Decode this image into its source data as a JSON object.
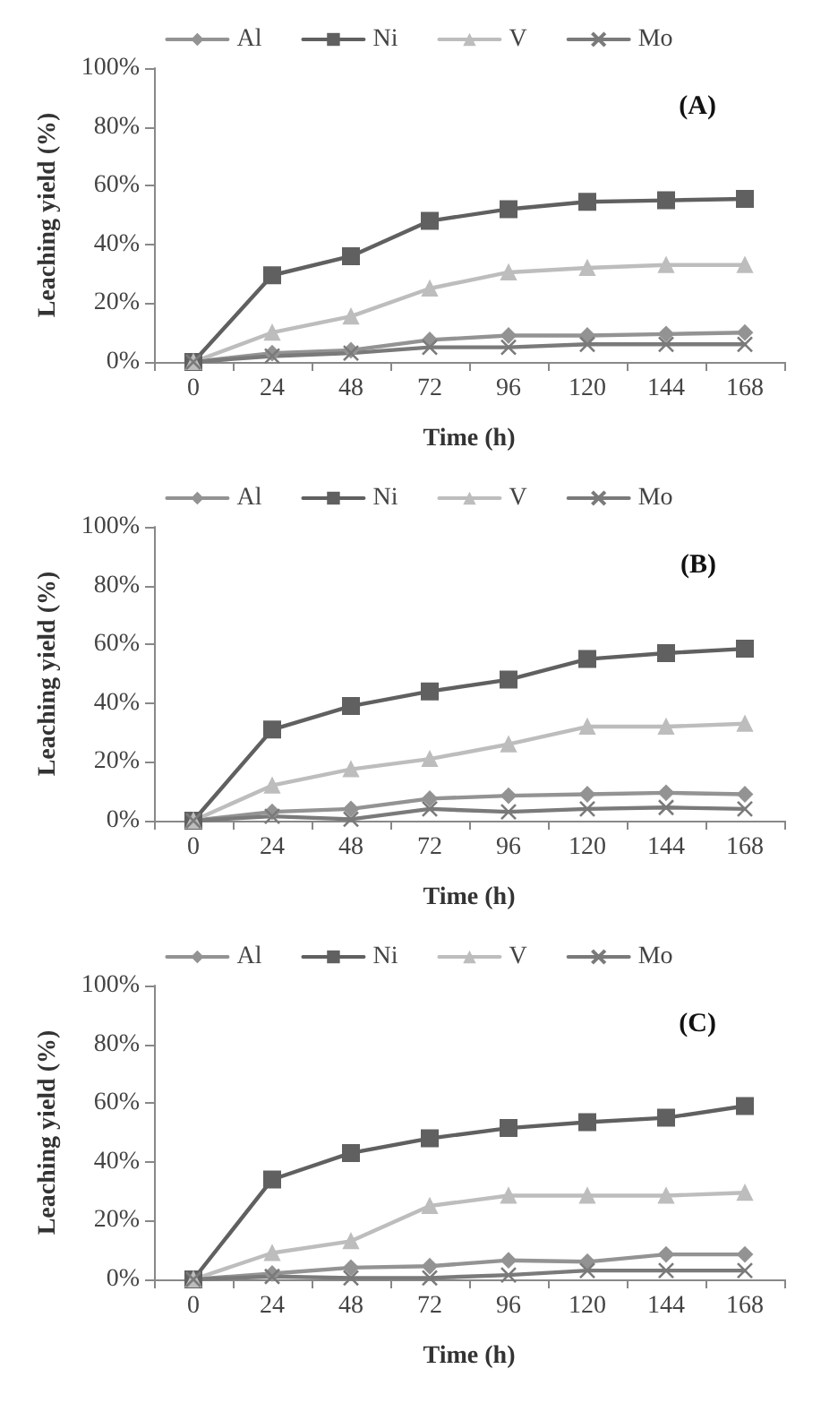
{
  "chart_data": [
    {
      "type": "line",
      "categories": [
        "0",
        "24",
        "48",
        "72",
        "96",
        "120",
        "144",
        "168"
      ],
      "xlabel": "Time (h)",
      "ylabel": "Leaching yield (%)",
      "ylim": [
        0,
        100
      ],
      "yticks": [
        {
          "value": 0,
          "label": "0%"
        },
        {
          "value": 20,
          "label": "20%"
        },
        {
          "value": 40,
          "label": "40%"
        },
        {
          "value": 60,
          "label": "60%"
        },
        {
          "value": 80,
          "label": "80%"
        },
        {
          "value": 100,
          "label": "100%"
        }
      ],
      "grid": false,
      "legend": "top",
      "annotations": [
        "(A)"
      ],
      "series": [
        {
          "name": "Al",
          "color": "#939393",
          "marker": "diamond",
          "values": [
            0,
            3,
            4,
            7.5,
            9,
            9,
            9.5,
            10
          ]
        },
        {
          "name": "Ni",
          "color": "#606060",
          "marker": "square",
          "values": [
            0,
            29.5,
            36,
            48,
            52,
            54.5,
            55,
            55.5
          ]
        },
        {
          "name": "V",
          "color": "#bdbdbd",
          "marker": "triangle",
          "values": [
            0,
            10,
            15.5,
            25,
            30.5,
            32,
            33,
            33
          ]
        },
        {
          "name": "Mo",
          "color": "#7a7a7a",
          "marker": "cross",
          "values": [
            0,
            2,
            3,
            5,
            5,
            6,
            6,
            6
          ]
        }
      ]
    },
    {
      "type": "line",
      "categories": [
        "0",
        "24",
        "48",
        "72",
        "96",
        "120",
        "144",
        "168"
      ],
      "xlabel": "Time (h)",
      "ylabel": "Leaching yield (%)",
      "ylim": [
        0,
        100
      ],
      "yticks": [
        {
          "value": 0,
          "label": "0%"
        },
        {
          "value": 20,
          "label": "20%"
        },
        {
          "value": 40,
          "label": "40%"
        },
        {
          "value": 60,
          "label": "60%"
        },
        {
          "value": 80,
          "label": "80%"
        },
        {
          "value": 100,
          "label": "100%"
        }
      ],
      "grid": false,
      "legend": "top",
      "annotations": [
        "(B)"
      ],
      "series": [
        {
          "name": "Al",
          "color": "#939393",
          "marker": "diamond",
          "values": [
            0,
            3,
            4,
            7.5,
            8.5,
            9,
            9.5,
            9
          ]
        },
        {
          "name": "Ni",
          "color": "#606060",
          "marker": "square",
          "values": [
            0,
            31,
            39,
            44,
            48,
            55,
            57,
            58.5
          ]
        },
        {
          "name": "V",
          "color": "#bdbdbd",
          "marker": "triangle",
          "values": [
            0,
            12,
            17.5,
            21,
            26,
            32,
            32,
            33
          ]
        },
        {
          "name": "Mo",
          "color": "#7a7a7a",
          "marker": "cross",
          "values": [
            0,
            1.5,
            0.5,
            4,
            3,
            4,
            4.5,
            4
          ]
        }
      ]
    },
    {
      "type": "line",
      "categories": [
        "0",
        "24",
        "48",
        "72",
        "96",
        "120",
        "144",
        "168"
      ],
      "xlabel": "Time (h)",
      "ylabel": "Leaching yield (%)",
      "ylim": [
        0,
        100
      ],
      "yticks": [
        {
          "value": 0,
          "label": "0%"
        },
        {
          "value": 20,
          "label": "20%"
        },
        {
          "value": 40,
          "label": "40%"
        },
        {
          "value": 60,
          "label": "60%"
        },
        {
          "value": 80,
          "label": "80%"
        },
        {
          "value": 100,
          "label": "100%"
        }
      ],
      "grid": false,
      "legend": "top",
      "annotations": [
        "(C)"
      ],
      "series": [
        {
          "name": "Al",
          "color": "#939393",
          "marker": "diamond",
          "values": [
            0,
            2,
            4,
            4.5,
            6.5,
            6,
            8.5,
            8.5
          ]
        },
        {
          "name": "Ni",
          "color": "#606060",
          "marker": "square",
          "values": [
            0,
            34,
            43,
            48,
            51.5,
            53.5,
            55,
            59
          ]
        },
        {
          "name": "V",
          "color": "#bdbdbd",
          "marker": "triangle",
          "values": [
            0,
            9,
            13,
            25,
            28.5,
            28.5,
            28.5,
            29.5
          ]
        },
        {
          "name": "Mo",
          "color": "#7a7a7a",
          "marker": "cross",
          "values": [
            0,
            1,
            0.5,
            0.5,
            1.5,
            3,
            3,
            3
          ]
        }
      ]
    }
  ]
}
